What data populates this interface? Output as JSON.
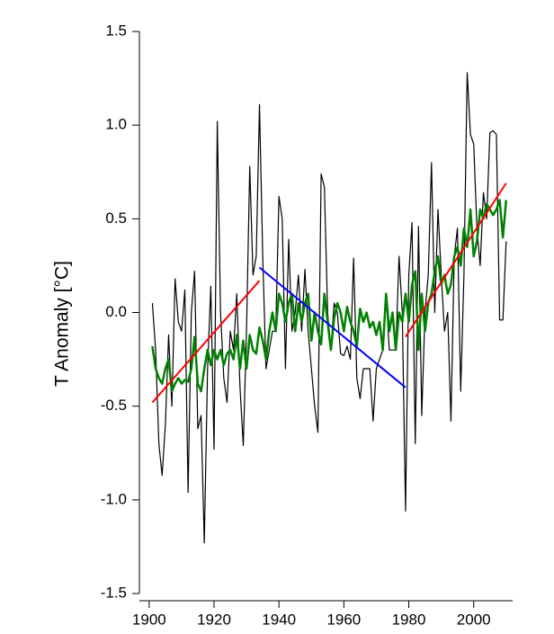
{
  "chart_data": {
    "type": "line",
    "ylabel": "T Anomaly [°C]",
    "x": [
      1901,
      1902,
      1903,
      1904,
      1905,
      1906,
      1907,
      1908,
      1909,
      1910,
      1911,
      1912,
      1913,
      1914,
      1915,
      1916,
      1917,
      1918,
      1919,
      1920,
      1921,
      1922,
      1923,
      1924,
      1925,
      1926,
      1927,
      1928,
      1929,
      1930,
      1931,
      1932,
      1933,
      1934,
      1935,
      1936,
      1937,
      1938,
      1939,
      1940,
      1941,
      1942,
      1943,
      1944,
      1945,
      1946,
      1947,
      1948,
      1949,
      1950,
      1951,
      1952,
      1953,
      1954,
      1955,
      1956,
      1957,
      1958,
      1959,
      1960,
      1961,
      1962,
      1963,
      1964,
      1965,
      1966,
      1967,
      1968,
      1969,
      1970,
      1971,
      1972,
      1973,
      1974,
      1975,
      1976,
      1977,
      1978,
      1979,
      1980,
      1981,
      1982,
      1983,
      1984,
      1985,
      1986,
      1987,
      1988,
      1989,
      1990,
      1991,
      1992,
      1993,
      1994,
      1995,
      1996,
      1997,
      1998,
      1999,
      2000,
      2001,
      2002,
      2003,
      2004,
      2005,
      2006,
      2007,
      2008,
      2009,
      2010
    ],
    "series": [
      {
        "color": "#000000",
        "values": [
          0.05,
          -0.2,
          -0.7,
          -0.87,
          -0.6,
          -0.12,
          -0.5,
          0.18,
          -0.05,
          -0.1,
          0.12,
          -0.96,
          0.0,
          0.22,
          -0.62,
          -0.55,
          -1.23,
          -0.3,
          0.14,
          -0.73,
          1.02,
          0.0,
          -0.35,
          -0.48,
          -0.1,
          -0.2,
          0.1,
          -0.4,
          -0.71,
          -0.1,
          0.78,
          0.2,
          0.3,
          1.11,
          0.3,
          -0.3,
          -0.2,
          -0.1,
          -0.1,
          0.62,
          0.5,
          -0.3,
          0.39,
          -0.1,
          0.0,
          0.2,
          -0.1,
          0.23,
          -0.1,
          -0.3,
          -0.5,
          -0.64,
          0.74,
          0.67,
          0.0,
          -0.2,
          0.05,
          0.0,
          -0.22,
          -0.23,
          -0.18,
          -0.25,
          0.29,
          -0.35,
          -0.46,
          -0.3,
          -0.3,
          -0.3,
          -0.58,
          -0.3,
          -0.25,
          -0.2,
          0.1,
          -0.2,
          -0.2,
          -0.2,
          0.3,
          0.0,
          -1.06,
          0.2,
          0.48,
          -0.7,
          0.46,
          -0.55,
          0.0,
          0.2,
          0.8,
          0.0,
          0.55,
          0.2,
          -0.1,
          0.0,
          -0.58,
          0.3,
          0.45,
          -0.42,
          0.2,
          1.28,
          0.95,
          0.9,
          0.45,
          0.25,
          0.64,
          0.5,
          0.96,
          0.97,
          0.95,
          -0.04,
          -0.04,
          0.38
        ]
      },
      {
        "color": "#008000",
        "values": [
          -0.18,
          -0.3,
          -0.35,
          -0.38,
          -0.3,
          -0.25,
          -0.42,
          -0.38,
          -0.35,
          -0.38,
          -0.36,
          -0.37,
          -0.3,
          -0.13,
          -0.38,
          -0.42,
          -0.3,
          -0.2,
          -0.28,
          -0.2,
          -0.25,
          -0.2,
          -0.28,
          -0.22,
          -0.2,
          -0.25,
          -0.12,
          -0.3,
          -0.15,
          -0.3,
          -0.12,
          -0.2,
          -0.22,
          -0.08,
          -0.15,
          -0.25,
          -0.1,
          0.0,
          -0.1,
          0.1,
          0.05,
          -0.05,
          0.05,
          0.1,
          -0.1,
          0.05,
          -0.05,
          0.05,
          0.1,
          -0.15,
          0.0,
          -0.1,
          -0.17,
          0.1,
          -0.05,
          -0.2,
          -0.03,
          0.05,
          0.0,
          -0.1,
          0.03,
          -0.05,
          -0.1,
          -0.18,
          0.02,
          -0.05,
          0.0,
          -0.08,
          -0.05,
          -0.12,
          -0.05,
          -0.2,
          0.1,
          -0.1,
          0.0,
          -0.2,
          0.0,
          -0.05,
          0.1,
          -0.05,
          0.15,
          0.22,
          -0.2,
          0.1,
          -0.1,
          0.05,
          0.1,
          0.22,
          0.3,
          0.15,
          0.2,
          0.1,
          0.15,
          0.3,
          0.35,
          0.25,
          0.45,
          0.35,
          0.55,
          0.3,
          0.38,
          0.55,
          0.5,
          0.58,
          0.55,
          0.52,
          0.55,
          0.6,
          0.4,
          0.6
        ]
      },
      {
        "color": "#ff0000",
        "x": [
          1901,
          1934
        ],
        "values": [
          -0.48,
          0.17
        ]
      },
      {
        "color": "#0000ff",
        "x": [
          1934,
          1979
        ],
        "values": [
          0.24,
          -0.4
        ]
      },
      {
        "color": "#ff0000",
        "x": [
          1979,
          2010
        ],
        "values": [
          -0.13,
          0.69
        ]
      }
    ],
    "xlim": [
      1897,
      2012
    ],
    "xticks": [
      1900,
      1920,
      1940,
      1960,
      1980,
      2000
    ],
    "ylim": [
      -1.5,
      1.5
    ],
    "yticks": [
      -1.5,
      {
        "value": -1,
        "label": "-1.0"
      },
      -0.5,
      {
        "value": 0,
        "label": "0.0"
      },
      0.5,
      {
        "value": 1,
        "label": "1.0"
      },
      1.5
    ]
  }
}
